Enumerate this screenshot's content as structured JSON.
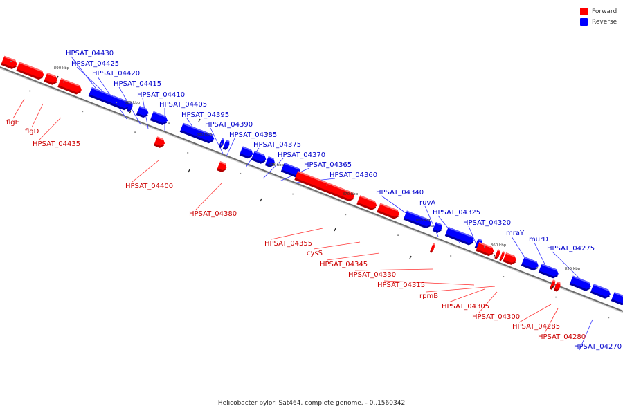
{
  "legend": {
    "forward_label": "Forward",
    "reverse_label": "Reverse",
    "forward_color": "#ff0000",
    "reverse_color": "#0000ff"
  },
  "caption": "Helicobacter pylori Sat464, complete genome. - 0..1560342",
  "ticks": [
    "890 kbp",
    "885 kbp",
    "880 kbp",
    "875 kbp",
    "870 kbp",
    "865 kbp",
    "860 kbp",
    "855 kbp"
  ],
  "forward_labels": [
    "flgE",
    "flgD",
    "HPSAT_04435",
    "HPSAT_04400",
    "HPSAT_04380",
    "HPSAT_04355",
    "cysS",
    "HPSAT_04345",
    "HPSAT_04330",
    "HPSAT_04315",
    "rpmB",
    "HPSAT_04305",
    "HPSAT_04300",
    "HPSAT_04285",
    "HPSAT_04280"
  ],
  "reverse_labels": [
    "HPSAT_04430",
    "HPSAT_04425",
    "HPSAT_04420",
    "HPSAT_04415",
    "HPSAT_04410",
    "HPSAT_04405",
    "HPSAT_04395",
    "HPSAT_04390",
    "HPSAT_04385",
    "HPSAT_04375",
    "HPSAT_04370",
    "HPSAT_04365",
    "HPSAT_04360",
    "HPSAT_04340",
    "ruvA",
    "HPSAT_04325",
    "HPSAT_04320",
    "mraY",
    "murD",
    "HPSAT_04275",
    "HPSAT_04270"
  ]
}
